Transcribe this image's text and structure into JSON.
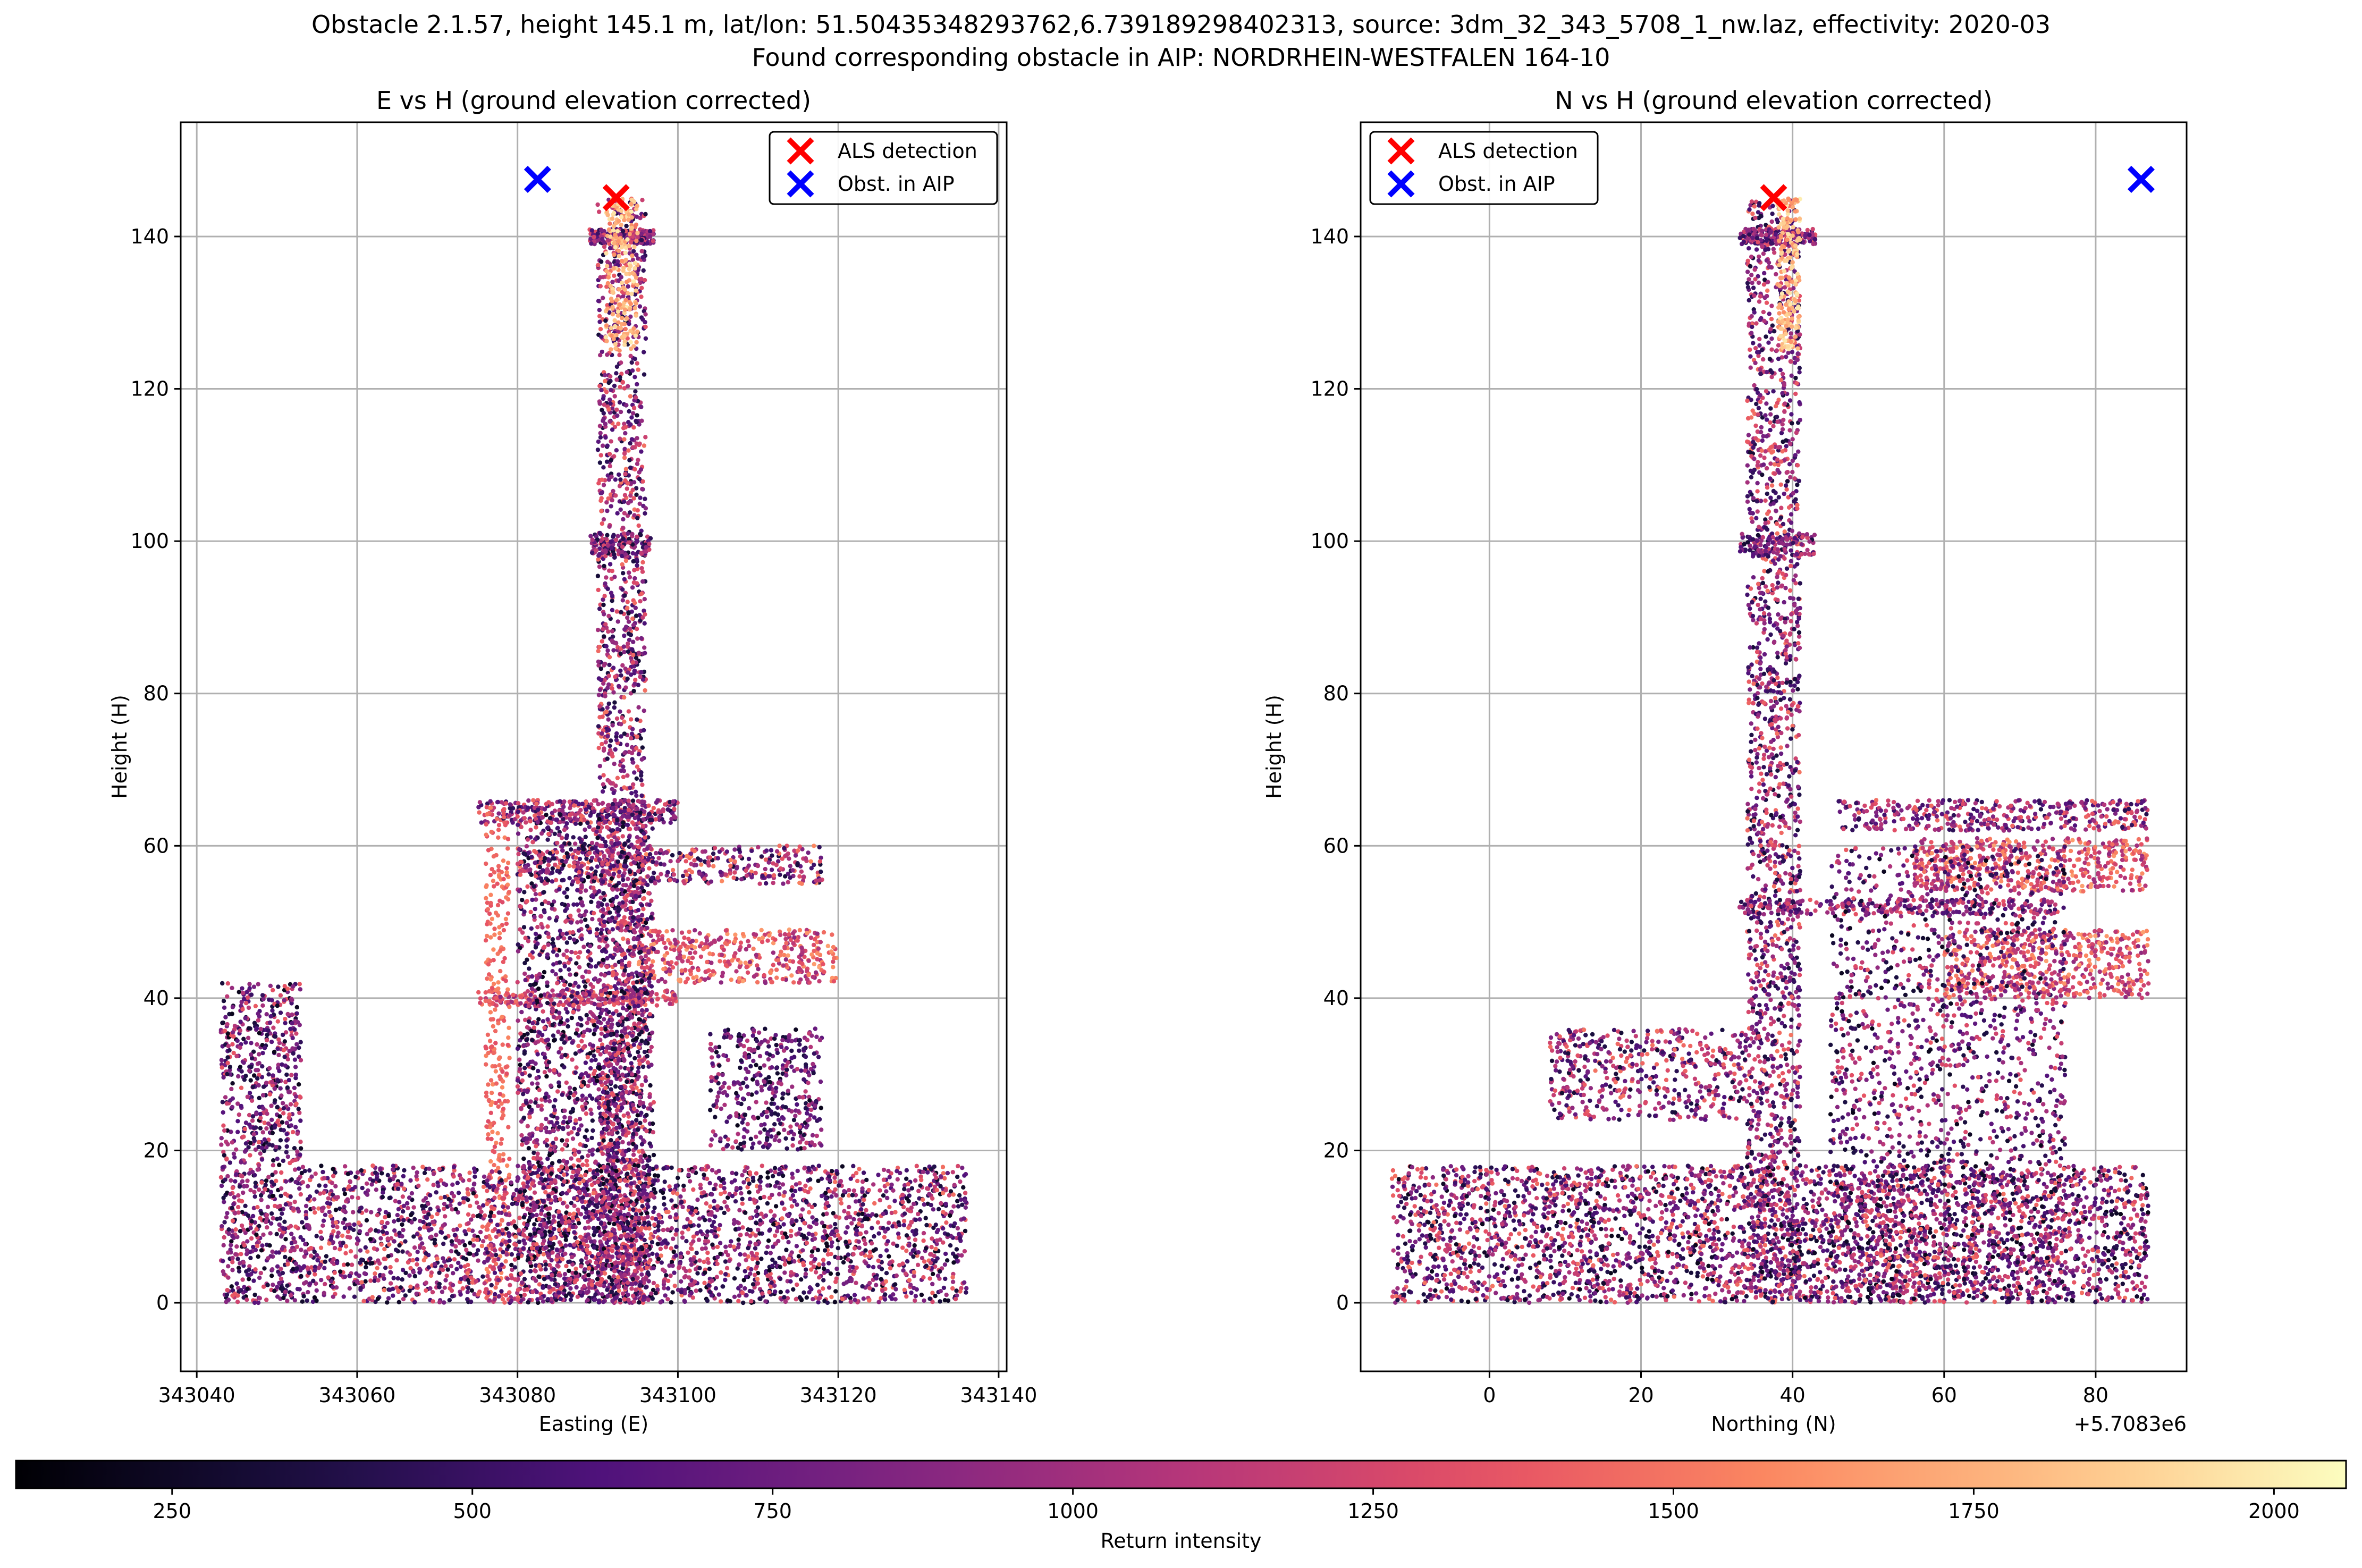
{
  "figure": {
    "title_line1": "Obstacle 2.1.57, height 145.1 m, lat/lon: 51.50435348293762,6.739189298402313, source: 3dm_32_343_5708_1_nw.laz, effectivity: 2020-03",
    "title_line2": "Found corresponding obstacle in AIP: NORDRHEIN-WESTFALEN 164-10"
  },
  "colorbar": {
    "label": "Return intensity",
    "min": 120,
    "max": 2060,
    "ticks": [
      250,
      500,
      750,
      1000,
      1250,
      1500,
      1750,
      2000
    ],
    "colormap": "magma"
  },
  "chart_data": [
    {
      "type": "scatter",
      "title": "E vs H (ground elevation corrected)",
      "xlabel": "Easting (E)",
      "ylabel": "Height (H)",
      "xlim": [
        343038,
        343141
      ],
      "ylim": [
        -9,
        155
      ],
      "xticks": [
        343040,
        343060,
        343080,
        343100,
        343120,
        343140
      ],
      "yticks": [
        0,
        20,
        40,
        60,
        80,
        100,
        120,
        140
      ],
      "offset_text": "",
      "grid": true,
      "legend_position": "upper right",
      "series": [
        {
          "name": "ALS detection",
          "color": "#ff0000",
          "marker": "x",
          "points": [
            [
              343092.3,
              145.1
            ]
          ]
        },
        {
          "name": "Obst. in AIP",
          "color": "#0000ff",
          "marker": "x",
          "points": [
            [
              343082.5,
              147.5
            ]
          ]
        }
      ],
      "point_cloud": {
        "description_color": "Return intensity",
        "segments": [
          {
            "x": [
              343090,
              343096
            ],
            "y": [
              0,
              145
            ],
            "density": 1800,
            "color_range": [
              300,
              1500
            ]
          },
          {
            "x": [
              343089,
              343097
            ],
            "y": [
              139,
              141
            ],
            "density": 200,
            "color_range": [
              400,
              1400
            ]
          },
          {
            "x": [
              343091,
              343095
            ],
            "y": [
              125,
              145
            ],
            "density": 200,
            "color_range": [
              1600,
              2000
            ]
          },
          {
            "x": [
              343089,
              343097
            ],
            "y": [
              98,
              101
            ],
            "density": 120,
            "color_range": [
              300,
              1300
            ]
          },
          {
            "x": [
              343075,
              343100
            ],
            "y": [
              63,
              66
            ],
            "density": 300,
            "color_range": [
              400,
              1500
            ]
          },
          {
            "x": [
              343080,
              343118
            ],
            "y": [
              55,
              60
            ],
            "density": 400,
            "color_range": [
              300,
              1600
            ]
          },
          {
            "x": [
              343095,
              343120
            ],
            "y": [
              42,
              49
            ],
            "density": 400,
            "color_range": [
              900,
              1700
            ]
          },
          {
            "x": [
              343075,
              343100
            ],
            "y": [
              39,
              41
            ],
            "density": 200,
            "color_range": [
              900,
              1500
            ]
          },
          {
            "x": [
              343080,
              343097
            ],
            "y": [
              0,
              65
            ],
            "density": 2200,
            "color_range": [
              200,
              1400
            ]
          },
          {
            "x": [
              343076,
              343079
            ],
            "y": [
              0,
              65
            ],
            "density": 300,
            "color_range": [
              1300,
              1600
            ]
          },
          {
            "x": [
              343043,
              343053
            ],
            "y": [
              0,
              42
            ],
            "density": 900,
            "color_range": [
              200,
              1400
            ]
          },
          {
            "x": [
              343053,
              343136
            ],
            "y": [
              0,
              18
            ],
            "density": 3000,
            "color_range": [
              200,
              1500
            ]
          },
          {
            "x": [
              343104,
              343118
            ],
            "y": [
              20,
              36
            ],
            "density": 400,
            "color_range": [
              200,
              1200
            ]
          }
        ]
      }
    },
    {
      "type": "scatter",
      "title": "N vs H (ground elevation corrected)",
      "xlabel": "Northing (N)",
      "ylabel": "Height (H)",
      "xlim": [
        -17,
        92
      ],
      "ylim": [
        -9,
        155
      ],
      "xticks": [
        0,
        20,
        40,
        60,
        80
      ],
      "yticks": [
        0,
        20,
        40,
        60,
        80,
        100,
        120,
        140
      ],
      "offset_text": "+5.7083e6",
      "grid": true,
      "legend_position": "upper left",
      "series": [
        {
          "name": "ALS detection",
          "color": "#ff0000",
          "marker": "x",
          "points": [
            [
              37.5,
              145.1
            ]
          ]
        },
        {
          "name": "Obst. in AIP",
          "color": "#0000ff",
          "marker": "x",
          "points": [
            [
              86,
              147.5
            ]
          ]
        }
      ],
      "point_cloud": {
        "description_color": "Return intensity",
        "segments": [
          {
            "x": [
              34,
              41
            ],
            "y": [
              0,
              145
            ],
            "density": 1800,
            "color_range": [
              300,
              1500
            ]
          },
          {
            "x": [
              33,
              43
            ],
            "y": [
              139,
              141
            ],
            "density": 200,
            "color_range": [
              400,
              1400
            ]
          },
          {
            "x": [
              38,
              41
            ],
            "y": [
              125,
              145
            ],
            "density": 200,
            "color_range": [
              1600,
              2000
            ]
          },
          {
            "x": [
              33,
              43
            ],
            "y": [
              98,
              101
            ],
            "density": 120,
            "color_range": [
              300,
              1300
            ]
          },
          {
            "x": [
              46,
              87
            ],
            "y": [
              62,
              66
            ],
            "density": 400,
            "color_range": [
              400,
              1500
            ]
          },
          {
            "x": [
              33,
              75
            ],
            "y": [
              51,
              53
            ],
            "density": 250,
            "color_range": [
              400,
              1400
            ]
          },
          {
            "x": [
              56,
              87
            ],
            "y": [
              54,
              61
            ],
            "density": 500,
            "color_range": [
              900,
              1700
            ]
          },
          {
            "x": [
              60,
              87
            ],
            "y": [
              40,
              49
            ],
            "density": 500,
            "color_range": [
              900,
              1700
            ]
          },
          {
            "x": [
              45,
              76
            ],
            "y": [
              0,
              60
            ],
            "density": 1800,
            "color_range": [
              200,
              1400
            ]
          },
          {
            "x": [
              8,
              34
            ],
            "y": [
              24,
              36
            ],
            "density": 500,
            "color_range": [
              300,
              1500
            ]
          },
          {
            "x": [
              -13,
              87
            ],
            "y": [
              0,
              18
            ],
            "density": 3500,
            "color_range": [
              200,
              1500
            ]
          }
        ]
      }
    }
  ]
}
